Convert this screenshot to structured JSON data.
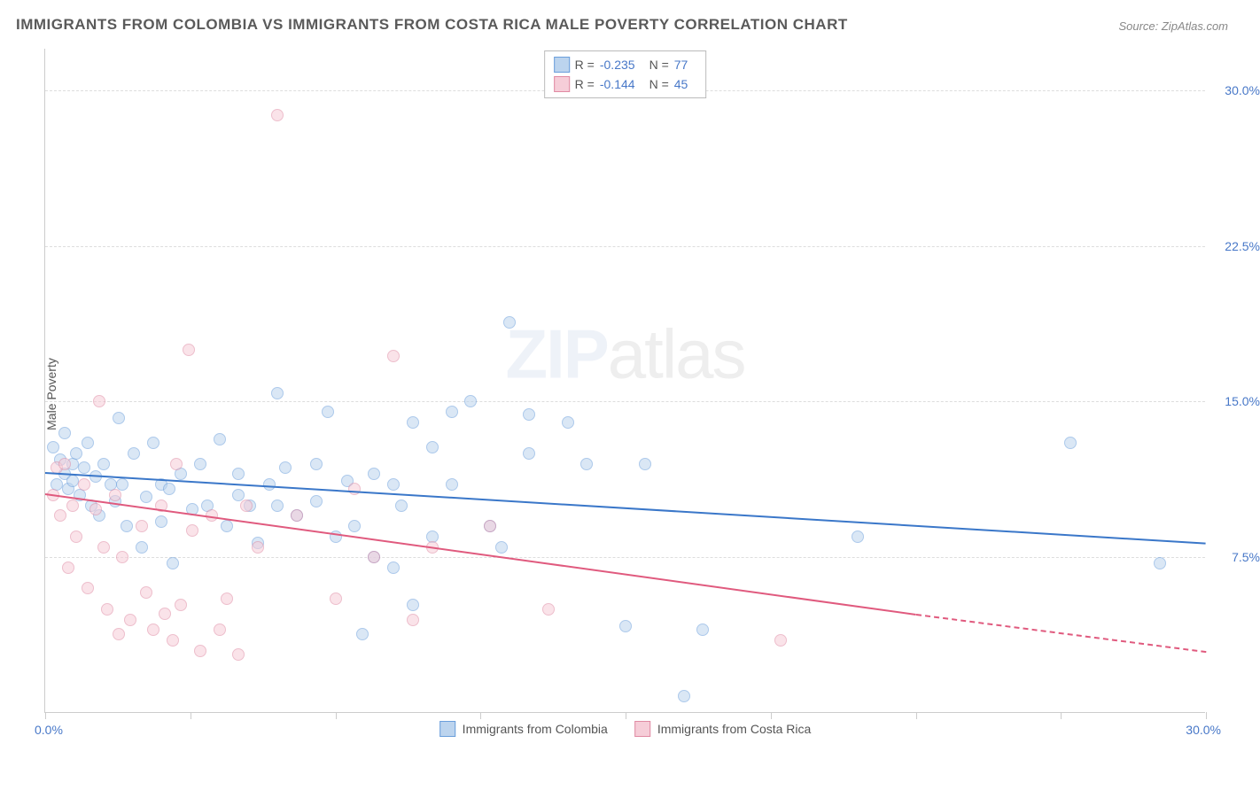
{
  "title": "IMMIGRANTS FROM COLOMBIA VS IMMIGRANTS FROM COSTA RICA MALE POVERTY CORRELATION CHART",
  "source_label": "Source: ZipAtlas.com",
  "y_axis_label": "Male Poverty",
  "watermark": {
    "bold": "ZIP",
    "rest": "atlas"
  },
  "chart": {
    "type": "scatter",
    "xlim": [
      0,
      30
    ],
    "ylim": [
      0,
      32
    ],
    "x_min_label": "0.0%",
    "x_max_label": "30.0%",
    "y_ticks": [
      {
        "v": 7.5,
        "label": "7.5%"
      },
      {
        "v": 15.0,
        "label": "15.0%"
      },
      {
        "v": 22.5,
        "label": "22.5%"
      },
      {
        "v": 30.0,
        "label": "30.0%"
      }
    ],
    "x_tick_positions": [
      0,
      3.75,
      7.5,
      11.25,
      15,
      18.75,
      22.5,
      26.25,
      30
    ],
    "background_color": "#ffffff",
    "grid_color": "#dddddd",
    "axis_color": "#cccccc",
    "tick_label_color": "#4878c8",
    "point_radius": 7,
    "point_opacity": 0.55
  },
  "series": [
    {
      "name": "Immigrants from Colombia",
      "fill": "#bcd4ee",
      "stroke": "#6a9edb",
      "line_color": "#3a77c9",
      "R": "-0.235",
      "N": "77",
      "trend": {
        "x1": 0,
        "y1": 11.6,
        "x2": 30,
        "y2": 8.2
      },
      "points": [
        [
          0.2,
          12.8
        ],
        [
          0.3,
          11.0
        ],
        [
          0.4,
          12.2
        ],
        [
          0.5,
          11.5
        ],
        [
          0.5,
          13.5
        ],
        [
          0.6,
          10.8
        ],
        [
          0.7,
          12.0
        ],
        [
          0.7,
          11.2
        ],
        [
          0.8,
          12.5
        ],
        [
          0.9,
          10.5
        ],
        [
          1.0,
          11.8
        ],
        [
          1.1,
          13.0
        ],
        [
          1.2,
          10.0
        ],
        [
          1.3,
          11.4
        ],
        [
          1.4,
          9.5
        ],
        [
          1.5,
          12.0
        ],
        [
          1.7,
          11.0
        ],
        [
          1.8,
          10.2
        ],
        [
          1.9,
          14.2
        ],
        [
          2.0,
          11.0
        ],
        [
          2.1,
          9.0
        ],
        [
          2.3,
          12.5
        ],
        [
          2.5,
          8.0
        ],
        [
          2.6,
          10.4
        ],
        [
          2.8,
          13.0
        ],
        [
          3.0,
          9.2
        ],
        [
          3.0,
          11.0
        ],
        [
          3.2,
          10.8
        ],
        [
          3.3,
          7.2
        ],
        [
          3.5,
          11.5
        ],
        [
          3.8,
          9.8
        ],
        [
          4.0,
          12.0
        ],
        [
          4.2,
          10.0
        ],
        [
          4.5,
          13.2
        ],
        [
          4.7,
          9.0
        ],
        [
          5.0,
          11.5
        ],
        [
          5.0,
          10.5
        ],
        [
          5.3,
          10.0
        ],
        [
          5.5,
          8.2
        ],
        [
          5.8,
          11.0
        ],
        [
          6.0,
          15.4
        ],
        [
          6.0,
          10.0
        ],
        [
          6.2,
          11.8
        ],
        [
          6.5,
          9.5
        ],
        [
          7.0,
          12.0
        ],
        [
          7.0,
          10.2
        ],
        [
          7.3,
          14.5
        ],
        [
          7.5,
          8.5
        ],
        [
          7.8,
          11.2
        ],
        [
          8.0,
          9.0
        ],
        [
          8.2,
          3.8
        ],
        [
          8.5,
          11.5
        ],
        [
          8.5,
          7.5
        ],
        [
          9.0,
          11.0
        ],
        [
          9.0,
          7.0
        ],
        [
          9.2,
          10.0
        ],
        [
          9.5,
          5.2
        ],
        [
          9.5,
          14.0
        ],
        [
          10.0,
          8.5
        ],
        [
          10.5,
          11.0
        ],
        [
          10.5,
          14.5
        ],
        [
          11.0,
          15.0
        ],
        [
          11.5,
          9.0
        ],
        [
          12.0,
          18.8
        ],
        [
          12.5,
          12.5
        ],
        [
          12.5,
          14.4
        ],
        [
          13.5,
          14.0
        ],
        [
          14.0,
          12.0
        ],
        [
          15.0,
          4.2
        ],
        [
          15.5,
          12.0
        ],
        [
          16.5,
          0.8
        ],
        [
          17.0,
          4.0
        ],
        [
          21.0,
          8.5
        ],
        [
          26.5,
          13.0
        ],
        [
          28.8,
          7.2
        ],
        [
          10.0,
          12.8
        ],
        [
          11.8,
          8.0
        ]
      ]
    },
    {
      "name": "Immigrants from Costa Rica",
      "fill": "#f6cdd8",
      "stroke": "#e08aa3",
      "line_color": "#e05a7e",
      "R": "-0.144",
      "N": "45",
      "trend": {
        "x1": 0,
        "y1": 10.6,
        "x2": 22.5,
        "y2": 4.8
      },
      "trend_dash": {
        "x1": 22.5,
        "y1": 4.8,
        "x2": 30,
        "y2": 3.0
      },
      "points": [
        [
          0.2,
          10.5
        ],
        [
          0.3,
          11.8
        ],
        [
          0.4,
          9.5
        ],
        [
          0.5,
          12.0
        ],
        [
          0.6,
          7.0
        ],
        [
          0.7,
          10.0
        ],
        [
          0.8,
          8.5
        ],
        [
          1.0,
          11.0
        ],
        [
          1.1,
          6.0
        ],
        [
          1.3,
          9.8
        ],
        [
          1.4,
          15.0
        ],
        [
          1.5,
          8.0
        ],
        [
          1.6,
          5.0
        ],
        [
          1.8,
          10.5
        ],
        [
          1.9,
          3.8
        ],
        [
          2.0,
          7.5
        ],
        [
          2.2,
          4.5
        ],
        [
          2.5,
          9.0
        ],
        [
          2.6,
          5.8
        ],
        [
          2.8,
          4.0
        ],
        [
          3.0,
          10.0
        ],
        [
          3.1,
          4.8
        ],
        [
          3.3,
          3.5
        ],
        [
          3.4,
          12.0
        ],
        [
          3.5,
          5.2
        ],
        [
          3.7,
          17.5
        ],
        [
          3.8,
          8.8
        ],
        [
          4.0,
          3.0
        ],
        [
          4.3,
          9.5
        ],
        [
          4.5,
          4.0
        ],
        [
          4.7,
          5.5
        ],
        [
          5.0,
          2.8
        ],
        [
          5.2,
          10.0
        ],
        [
          5.5,
          8.0
        ],
        [
          6.0,
          28.8
        ],
        [
          6.5,
          9.5
        ],
        [
          7.5,
          5.5
        ],
        [
          8.0,
          10.8
        ],
        [
          8.5,
          7.5
        ],
        [
          9.0,
          17.2
        ],
        [
          9.5,
          4.5
        ],
        [
          10.0,
          8.0
        ],
        [
          11.5,
          9.0
        ],
        [
          13.0,
          5.0
        ],
        [
          19.0,
          3.5
        ]
      ]
    }
  ],
  "stats_legend": {
    "R_label": "R =",
    "N_label": "N ="
  }
}
